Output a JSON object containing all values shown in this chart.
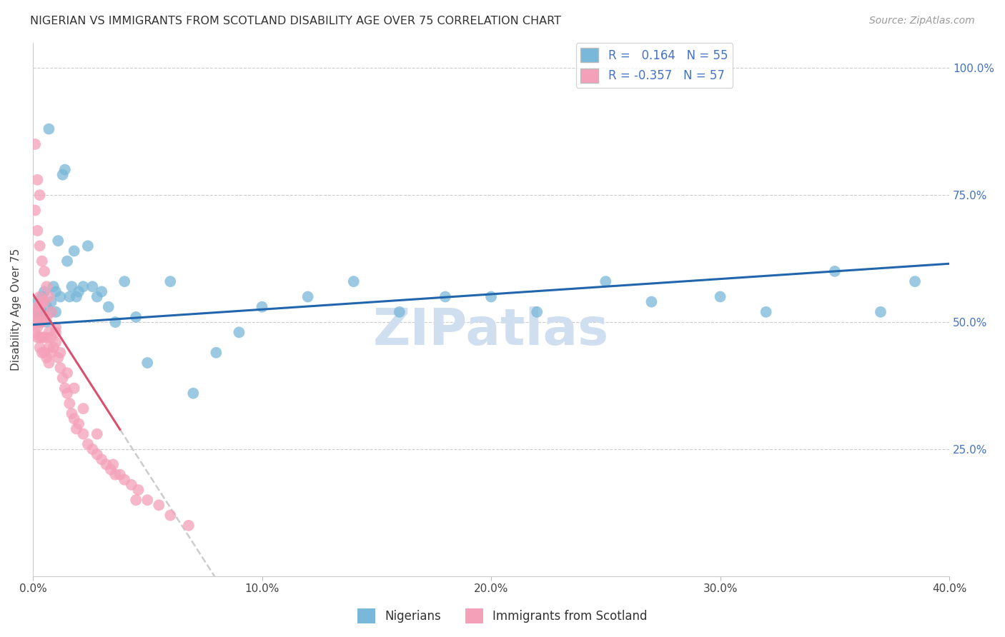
{
  "title": "NIGERIAN VS IMMIGRANTS FROM SCOTLAND DISABILITY AGE OVER 75 CORRELATION CHART",
  "source": "Source: ZipAtlas.com",
  "ylabel": "Disability Age Over 75",
  "xlim": [
    0.0,
    0.4
  ],
  "ylim": [
    0.0,
    1.05
  ],
  "xtick_labels": [
    "0.0%",
    "10.0%",
    "20.0%",
    "30.0%",
    "40.0%"
  ],
  "xtick_values": [
    0.0,
    0.1,
    0.2,
    0.3,
    0.4
  ],
  "ytick_labels": [
    "25.0%",
    "50.0%",
    "75.0%",
    "100.0%"
  ],
  "ytick_values": [
    0.25,
    0.5,
    0.75,
    1.0
  ],
  "r_nigerian": 0.164,
  "n_nigerian": 55,
  "r_scotland": -0.357,
  "n_scotland": 57,
  "blue_color": "#7ab8d9",
  "pink_color": "#f4a0b8",
  "blue_line_color": "#2166ac",
  "pink_line_color": "#d94f6e",
  "gray_dash_color": "#cccccc",
  "watermark_color": "#d0dff0",
  "nigerian_x": [
    0.001,
    0.002,
    0.002,
    0.003,
    0.003,
    0.004,
    0.004,
    0.005,
    0.005,
    0.006,
    0.006,
    0.007,
    0.008,
    0.008,
    0.009,
    0.01,
    0.01,
    0.011,
    0.012,
    0.013,
    0.014,
    0.015,
    0.016,
    0.017,
    0.018,
    0.019,
    0.02,
    0.022,
    0.024,
    0.026,
    0.028,
    0.03,
    0.033,
    0.036,
    0.04,
    0.045,
    0.05,
    0.06,
    0.07,
    0.08,
    0.09,
    0.1,
    0.12,
    0.14,
    0.16,
    0.18,
    0.2,
    0.22,
    0.25,
    0.27,
    0.3,
    0.32,
    0.35,
    0.37,
    0.385
  ],
  "nigerian_y": [
    0.52,
    0.51,
    0.54,
    0.5,
    0.53,
    0.52,
    0.55,
    0.51,
    0.56,
    0.5,
    0.53,
    0.88,
    0.54,
    0.52,
    0.57,
    0.52,
    0.56,
    0.66,
    0.55,
    0.79,
    0.8,
    0.62,
    0.55,
    0.57,
    0.64,
    0.55,
    0.56,
    0.57,
    0.65,
    0.57,
    0.55,
    0.56,
    0.53,
    0.5,
    0.58,
    0.51,
    0.42,
    0.58,
    0.36,
    0.44,
    0.48,
    0.53,
    0.55,
    0.58,
    0.52,
    0.55,
    0.55,
    0.52,
    0.58,
    0.54,
    0.55,
    0.52,
    0.6,
    0.52,
    0.58
  ],
  "scotland_x": [
    0.001,
    0.001,
    0.001,
    0.002,
    0.002,
    0.002,
    0.002,
    0.003,
    0.003,
    0.003,
    0.003,
    0.003,
    0.004,
    0.004,
    0.004,
    0.004,
    0.005,
    0.005,
    0.005,
    0.005,
    0.006,
    0.006,
    0.006,
    0.007,
    0.007,
    0.007,
    0.008,
    0.008,
    0.009,
    0.01,
    0.01,
    0.011,
    0.012,
    0.013,
    0.014,
    0.015,
    0.016,
    0.017,
    0.018,
    0.019,
    0.02,
    0.022,
    0.024,
    0.026,
    0.028,
    0.03,
    0.032,
    0.034,
    0.036,
    0.038,
    0.04,
    0.043,
    0.046,
    0.05,
    0.055,
    0.06,
    0.068
  ],
  "scotland_y": [
    0.52,
    0.5,
    0.48,
    0.53,
    0.51,
    0.49,
    0.47,
    0.55,
    0.53,
    0.5,
    0.47,
    0.45,
    0.54,
    0.5,
    0.47,
    0.44,
    0.54,
    0.51,
    0.47,
    0.44,
    0.51,
    0.47,
    0.43,
    0.48,
    0.45,
    0.42,
    0.47,
    0.44,
    0.45,
    0.49,
    0.46,
    0.43,
    0.41,
    0.39,
    0.37,
    0.36,
    0.34,
    0.32,
    0.31,
    0.29,
    0.3,
    0.28,
    0.26,
    0.25,
    0.24,
    0.23,
    0.22,
    0.21,
    0.2,
    0.2,
    0.19,
    0.18,
    0.17,
    0.15,
    0.14,
    0.12,
    0.1
  ],
  "scotland_extra_x": [
    0.001,
    0.001,
    0.002,
    0.002,
    0.003,
    0.003,
    0.004,
    0.005,
    0.006,
    0.007,
    0.008,
    0.01,
    0.012,
    0.015,
    0.018,
    0.022,
    0.028,
    0.035,
    0.045
  ],
  "scotland_extra_y": [
    0.85,
    0.72,
    0.78,
    0.68,
    0.75,
    0.65,
    0.62,
    0.6,
    0.57,
    0.55,
    0.52,
    0.48,
    0.44,
    0.4,
    0.37,
    0.33,
    0.28,
    0.22,
    0.15
  ]
}
